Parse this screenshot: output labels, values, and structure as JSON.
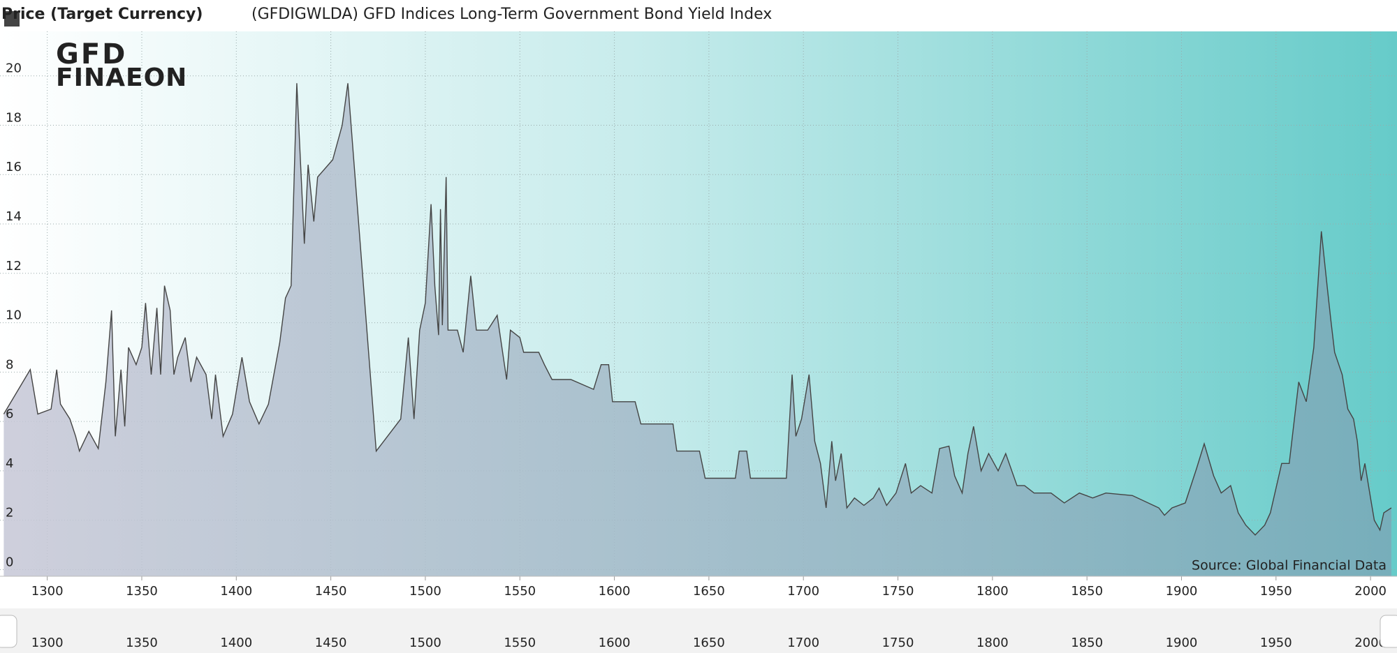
{
  "chart_data": {
    "type": "area",
    "y_label": "Price (Target Currency)",
    "source": "Source: Global Financial Data",
    "logo": {
      "top": "GFD",
      "bottom": "FINAEON"
    },
    "series": [
      {
        "name": "(GFDIGWLDA) GFD Indices Long-Term Government Bond Yield Index",
        "color": "#444444",
        "values": [
          6.3,
          8.1,
          6.3,
          6.5,
          8.1,
          6.7,
          6.1,
          5.4,
          4.8,
          5.6,
          4.9,
          7.6,
          10.5,
          5.4,
          8.1,
          5.8,
          9.0,
          8.3,
          9.0,
          10.8,
          7.9,
          10.6,
          7.9,
          11.5,
          10.5,
          7.9,
          8.6,
          9.4,
          7.6,
          8.6,
          7.9,
          6.1,
          7.9,
          5.4,
          6.3,
          8.6,
          6.8,
          5.9,
          6.7,
          9.2,
          11.0,
          11.5,
          19.7,
          13.2,
          16.4,
          14.1,
          15.9,
          16.6,
          18.0,
          19.7,
          4.8,
          6.1,
          9.4,
          6.1,
          9.7,
          10.8,
          14.8,
          11.5,
          9.5,
          14.6,
          9.9,
          15.9,
          9.7,
          9.7,
          8.8,
          11.9,
          9.7,
          9.7,
          10.3,
          7.7,
          9.7,
          9.4,
          8.8,
          8.8,
          8.3,
          7.7,
          7.7,
          7.3,
          8.3,
          8.3,
          6.8,
          6.8,
          5.9,
          5.9,
          4.8,
          4.8,
          3.7,
          3.7,
          4.8,
          4.8,
          3.7,
          3.7,
          7.9,
          5.4,
          6.1,
          7.9,
          5.2,
          4.3,
          2.5,
          5.2,
          3.6,
          4.7,
          2.5,
          2.9,
          2.6,
          2.9,
          3.3,
          2.6,
          3.1,
          4.3,
          3.1,
          3.4,
          3.1,
          4.9,
          5.0,
          3.8,
          3.1,
          4.7,
          5.8,
          4.0,
          4.7,
          4.0,
          4.7,
          3.4,
          3.4,
          3.1,
          3.1,
          2.7,
          3.1,
          2.9,
          3.1,
          3.0,
          2.5,
          2.2,
          2.5,
          2.7,
          4.1,
          5.1,
          3.8,
          3.1,
          3.4,
          2.3,
          1.8,
          1.4,
          1.8,
          2.3,
          4.3,
          4.3,
          7.6,
          6.8,
          9.0,
          13.7,
          11.5,
          10.1,
          8.8,
          7.9,
          6.5,
          6.1,
          5.2,
          3.6,
          4.3,
          2.9,
          2.0,
          1.6,
          2.3,
          2.5
        ]
      }
    ],
    "x": [
      1277,
      1291,
      1295,
      1302,
      1305,
      1307,
      1312,
      1315,
      1317,
      1322,
      1327,
      1331,
      1334,
      1336,
      1339,
      1341,
      1343,
      1347,
      1350,
      1352,
      1355,
      1358,
      1360,
      1362,
      1365,
      1367,
      1369,
      1373,
      1376,
      1379,
      1384,
      1387,
      1389,
      1393,
      1398,
      1403,
      1407,
      1412,
      1417,
      1423,
      1426,
      1429,
      1432,
      1436,
      1438,
      1441,
      1443,
      1451,
      1456,
      1459,
      1474,
      1487,
      1491,
      1494,
      1497,
      1500,
      1503,
      1505,
      1507,
      1508,
      1509,
      1511,
      1512,
      1517,
      1520,
      1524,
      1527,
      1533,
      1538,
      1543,
      1545,
      1550,
      1552,
      1560,
      1563,
      1567,
      1577,
      1589,
      1593,
      1597,
      1599,
      1611,
      1614,
      1631,
      1633,
      1645,
      1648,
      1664,
      1666,
      1670,
      1672,
      1691,
      1694,
      1696,
      1699,
      1703,
      1706,
      1709,
      1712,
      1715,
      1717,
      1720,
      1723,
      1727,
      1732,
      1737,
      1740,
      1744,
      1749,
      1754,
      1757,
      1762,
      1768,
      1772,
      1777,
      1780,
      1784,
      1787,
      1790,
      1794,
      1798,
      1803,
      1807,
      1813,
      1817,
      1822,
      1831,
      1838,
      1846,
      1853,
      1860,
      1874,
      1888,
      1891,
      1895,
      1902,
      1908,
      1912,
      1917,
      1921,
      1926,
      1930,
      1934,
      1939,
      1944,
      1947,
      1953,
      1957,
      1962,
      1966,
      1970,
      1974,
      1977,
      1979,
      1981,
      1985,
      1988,
      1991,
      1993,
      1995,
      1997,
      2000,
      2002,
      2005,
      2007,
      2011
    ],
    "xlim": [
      1275,
      2014
    ],
    "ylim": [
      -0.27,
      21.8
    ],
    "xticks": [
      1300,
      1350,
      1400,
      1450,
      1500,
      1550,
      1600,
      1650,
      1700,
      1750,
      1800,
      1850,
      1900,
      1950,
      2000
    ],
    "yticks": [
      0,
      2,
      4,
      6,
      8,
      10,
      12,
      14,
      16,
      18,
      20
    ],
    "grid": true
  }
}
